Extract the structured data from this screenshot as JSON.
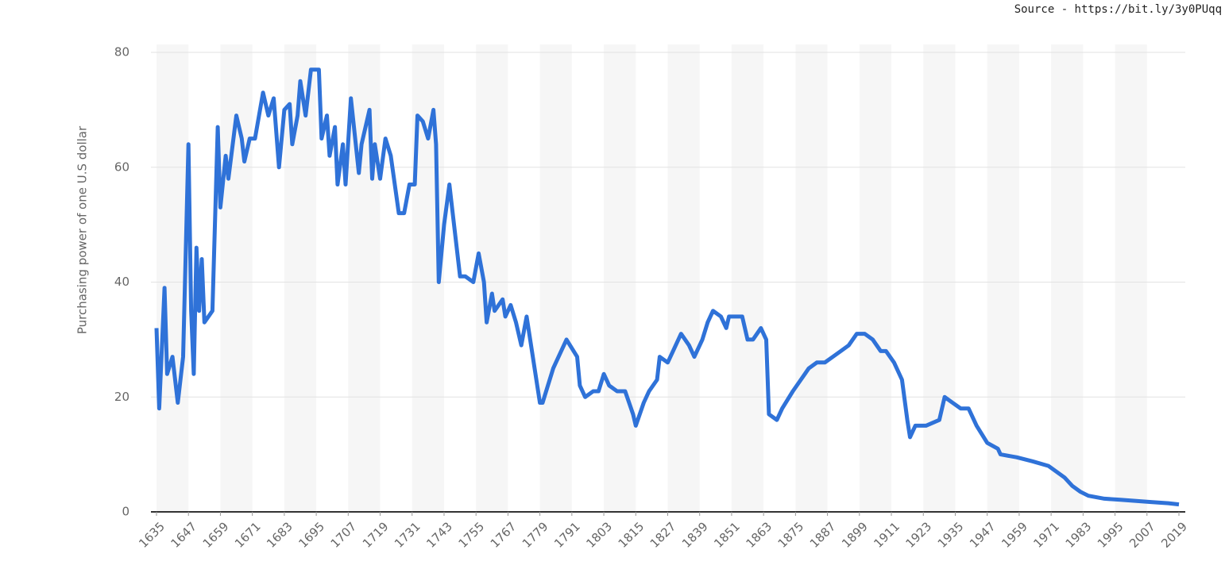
{
  "chart_data": {
    "type": "line",
    "source": "Source - https://bit.ly/3y0PUqq",
    "y_label": "Purchasing power of one U.S dollar",
    "color": "#2f72d8",
    "grid": true,
    "x": [
      1635,
      1636,
      1638,
      1639,
      1641,
      1643,
      1645,
      1647,
      1648,
      1649,
      1650,
      1651,
      1652,
      1653,
      1656,
      1658,
      1659,
      1661,
      1662,
      1665,
      1667,
      1668,
      1670,
      1672,
      1675,
      1677,
      1679,
      1681,
      1683,
      1685,
      1686,
      1688,
      1689,
      1691,
      1693,
      1696,
      1697,
      1699,
      1700,
      1702,
      1703,
      1705,
      1706,
      1708,
      1711,
      1712,
      1715,
      1716,
      1717,
      1719,
      1721,
      1723,
      1726,
      1728,
      1730,
      1732,
      1733,
      1735,
      1737,
      1739,
      1740,
      1741,
      1743,
      1745,
      1746,
      1749,
      1751,
      1754,
      1756,
      1758,
      1759,
      1761,
      1762,
      1765,
      1766,
      1768,
      1770,
      1772,
      1774,
      1776,
      1779,
      1780,
      1782,
      1784,
      1786,
      1789,
      1793,
      1794,
      1796,
      1799,
      1801,
      1803,
      1805,
      1808,
      1811,
      1814,
      1815,
      1818,
      1820,
      1823,
      1824,
      1827,
      1829,
      1832,
      1835,
      1837,
      1840,
      1842,
      1844,
      1847,
      1849,
      1850,
      1855,
      1857,
      1859,
      1862,
      1864,
      1865,
      1868,
      1870,
      1874,
      1877,
      1880,
      1883,
      1886,
      1889,
      1892,
      1895,
      1898,
      1901,
      1904,
      1907,
      1909,
      1912,
      1915,
      1917,
      1918,
      1920,
      1924,
      1929,
      1931,
      1934,
      1937,
      1940,
      1943,
      1947,
      1951,
      1952,
      1958,
      1964,
      1970,
      1976,
      1979,
      1982,
      1985,
      1991,
      1997,
      2003,
      2009,
      2015,
      2019
    ],
    "values": [
      32,
      18,
      39,
      24,
      27,
      19,
      27,
      64,
      35,
      24,
      46,
      35,
      44,
      33,
      35,
      67,
      53,
      62,
      58,
      69,
      65,
      61,
      65,
      65,
      73,
      69,
      72,
      60,
      70,
      71,
      64,
      69,
      75,
      69,
      77,
      77,
      65,
      69,
      62,
      67,
      57,
      64,
      57,
      72,
      59,
      64,
      70,
      58,
      64,
      58,
      65,
      62,
      52,
      52,
      57,
      57,
      69,
      68,
      65,
      70,
      64,
      40,
      50,
      57,
      53,
      41,
      41,
      40,
      45,
      40,
      33,
      38,
      35,
      37,
      34,
      36,
      33,
      29,
      34,
      28,
      19,
      19,
      22,
      25,
      27,
      30,
      27,
      22,
      20,
      21,
      21,
      24,
      22,
      21,
      21,
      17,
      15,
      19,
      21,
      23,
      27,
      26,
      28,
      31,
      29,
      27,
      30,
      33,
      35,
      34,
      32,
      34,
      34,
      30,
      30,
      32,
      30,
      17,
      16,
      18,
      21,
      23,
      25,
      26,
      26,
      27,
      28,
      29,
      31,
      31,
      30,
      28,
      28,
      26,
      23,
      16,
      13,
      15,
      15,
      16,
      20,
      19,
      18,
      18,
      15,
      12,
      11,
      10,
      9.5,
      8.8,
      8,
      6,
      4.5,
      3.5,
      2.8,
      2.3,
      2.1,
      1.9,
      1.7,
      1.5,
      1.3
    ],
    "xlim": [
      1635,
      2019
    ],
    "xticks": [
      1635,
      1647,
      1659,
      1671,
      1683,
      1695,
      1707,
      1719,
      1731,
      1743,
      1755,
      1767,
      1779,
      1791,
      1803,
      1815,
      1827,
      1839,
      1851,
      1863,
      1875,
      1887,
      1899,
      1911,
      1923,
      1935,
      1947,
      1959,
      1971,
      1983,
      1995,
      2007,
      2019
    ],
    "ylim": [
      0,
      80
    ],
    "yticks": [
      0,
      20,
      40,
      60,
      80
    ]
  }
}
